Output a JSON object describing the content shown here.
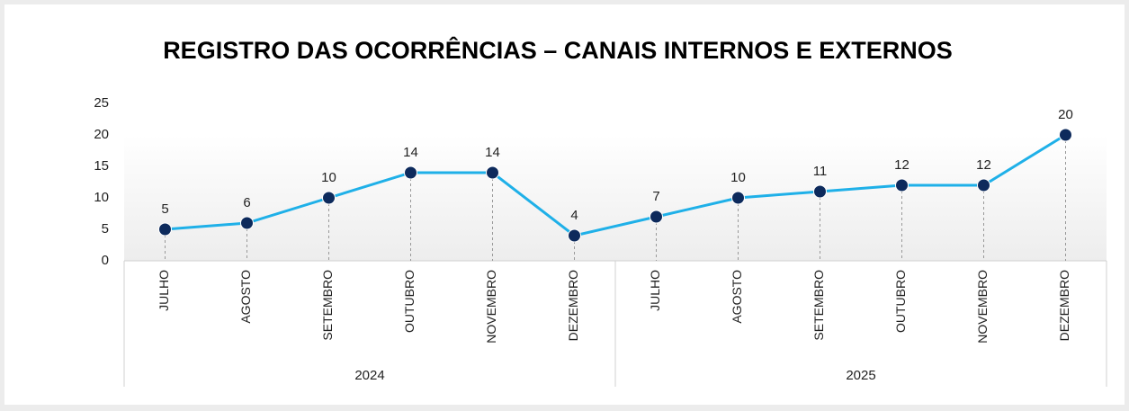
{
  "chart_data": {
    "type": "line",
    "title": "REGISTRO DAS OCORRÊNCIAS – CANAIS INTERNOS E EXTERNOS",
    "groups": [
      {
        "name": "2024",
        "categories": [
          "JULHO",
          "AGOSTO",
          "SETEMBRO",
          "OUTUBRO",
          "NOVEMBRO",
          "DEZEMBRO"
        ]
      },
      {
        "name": "2025",
        "categories": [
          "JULHO",
          "AGOSTO",
          "SETEMBRO",
          "OUTUBRO",
          "NOVEMBRO",
          "DEZEMBRO"
        ]
      }
    ],
    "values": [
      5,
      6,
      10,
      14,
      14,
      4,
      7,
      10,
      11,
      12,
      12,
      20
    ],
    "color": "#1fb0e8",
    "marker_color": "#0d2a5c",
    "ylim": [
      0,
      25
    ],
    "yticks": [
      0,
      5,
      10,
      15,
      20,
      25
    ],
    "grid": false
  }
}
